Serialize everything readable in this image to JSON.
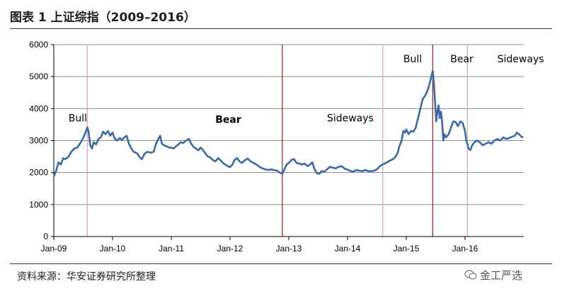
{
  "header": {
    "title": "图表 1  上证综指（2009–2016）"
  },
  "footer": {
    "source": "资料来源：华安证券研究所整理",
    "watermark": "金工严选"
  },
  "chart_data": {
    "type": "line",
    "title": "上证综指（2009–2016）",
    "xlabel": "",
    "ylabel": "",
    "ylim": [
      0,
      6000
    ],
    "yticks": [
      0,
      1000,
      2000,
      3000,
      4000,
      5000,
      6000
    ],
    "grid": true,
    "xlim": [
      2009.0,
      2017.0
    ],
    "xticks": [
      {
        "label": "Jan-09",
        "x": 2009.0
      },
      {
        "label": "Jan-10",
        "x": 2010.0
      },
      {
        "label": "Jan-11",
        "x": 2011.0
      },
      {
        "label": "Jan-12",
        "x": 2012.0
      },
      {
        "label": "Jan-13",
        "x": 2013.0
      },
      {
        "label": "Jan-14",
        "x": 2014.0
      },
      {
        "label": "Jan-15",
        "x": 2015.0
      },
      {
        "label": "Jan-16",
        "x": 2016.0
      }
    ],
    "series": [
      {
        "name": "上证综指",
        "color": "#3b6aa5",
        "points": [
          [
            2009.0,
            1880
          ],
          [
            2009.04,
            2050
          ],
          [
            2009.08,
            2320
          ],
          [
            2009.12,
            2250
          ],
          [
            2009.16,
            2450
          ],
          [
            2009.2,
            2420
          ],
          [
            2009.25,
            2500
          ],
          [
            2009.3,
            2650
          ],
          [
            2009.35,
            2750
          ],
          [
            2009.4,
            2780
          ],
          [
            2009.45,
            2920
          ],
          [
            2009.5,
            3080
          ],
          [
            2009.54,
            3250
          ],
          [
            2009.57,
            3410
          ],
          [
            2009.59,
            3300
          ],
          [
            2009.62,
            2850
          ],
          [
            2009.65,
            2750
          ],
          [
            2009.68,
            2950
          ],
          [
            2009.72,
            2880
          ],
          [
            2009.76,
            3050
          ],
          [
            2009.8,
            3100
          ],
          [
            2009.84,
            3280
          ],
          [
            2009.88,
            3200
          ],
          [
            2009.92,
            3300
          ],
          [
            2009.96,
            3150
          ],
          [
            2010.0,
            3250
          ],
          [
            2010.04,
            3050
          ],
          [
            2010.08,
            3000
          ],
          [
            2010.12,
            3080
          ],
          [
            2010.16,
            3020
          ],
          [
            2010.2,
            3100
          ],
          [
            2010.24,
            3150
          ],
          [
            2010.28,
            2900
          ],
          [
            2010.32,
            2750
          ],
          [
            2010.36,
            2650
          ],
          [
            2010.42,
            2600
          ],
          [
            2010.46,
            2480
          ],
          [
            2010.5,
            2420
          ],
          [
            2010.55,
            2600
          ],
          [
            2010.6,
            2650
          ],
          [
            2010.65,
            2620
          ],
          [
            2010.7,
            2650
          ],
          [
            2010.74,
            2900
          ],
          [
            2010.78,
            3050
          ],
          [
            2010.81,
            3150
          ],
          [
            2010.84,
            2900
          ],
          [
            2010.88,
            2850
          ],
          [
            2010.92,
            2820
          ],
          [
            2010.96,
            2780
          ],
          [
            2011.0,
            2780
          ],
          [
            2011.04,
            2750
          ],
          [
            2011.08,
            2820
          ],
          [
            2011.12,
            2880
          ],
          [
            2011.16,
            2950
          ],
          [
            2011.2,
            2920
          ],
          [
            2011.25,
            3000
          ],
          [
            2011.3,
            3050
          ],
          [
            2011.34,
            2900
          ],
          [
            2011.38,
            2800
          ],
          [
            2011.42,
            2750
          ],
          [
            2011.46,
            2700
          ],
          [
            2011.5,
            2780
          ],
          [
            2011.54,
            2700
          ],
          [
            2011.58,
            2600
          ],
          [
            2011.62,
            2500
          ],
          [
            2011.66,
            2480
          ],
          [
            2011.7,
            2400
          ],
          [
            2011.75,
            2350
          ],
          [
            2011.8,
            2450
          ],
          [
            2011.84,
            2380
          ],
          [
            2011.88,
            2300
          ],
          [
            2011.92,
            2250
          ],
          [
            2011.96,
            2200
          ],
          [
            2012.0,
            2170
          ],
          [
            2012.04,
            2250
          ],
          [
            2012.08,
            2400
          ],
          [
            2012.12,
            2450
          ],
          [
            2012.16,
            2350
          ],
          [
            2012.2,
            2300
          ],
          [
            2012.25,
            2380
          ],
          [
            2012.3,
            2440
          ],
          [
            2012.35,
            2350
          ],
          [
            2012.4,
            2300
          ],
          [
            2012.45,
            2250
          ],
          [
            2012.5,
            2180
          ],
          [
            2012.55,
            2130
          ],
          [
            2012.6,
            2100
          ],
          [
            2012.65,
            2080
          ],
          [
            2012.7,
            2100
          ],
          [
            2012.75,
            2080
          ],
          [
            2012.8,
            2060
          ],
          [
            2012.85,
            2000
          ],
          [
            2012.89,
            1960
          ],
          [
            2012.92,
            2080
          ],
          [
            2012.96,
            2250
          ],
          [
            2013.0,
            2300
          ],
          [
            2013.05,
            2400
          ],
          [
            2013.09,
            2420
          ],
          [
            2013.13,
            2300
          ],
          [
            2013.18,
            2280
          ],
          [
            2013.22,
            2250
          ],
          [
            2013.27,
            2280
          ],
          [
            2013.32,
            2200
          ],
          [
            2013.36,
            2250
          ],
          [
            2013.4,
            2320
          ],
          [
            2013.44,
            2100
          ],
          [
            2013.48,
            1980
          ],
          [
            2013.52,
            1960
          ],
          [
            2013.56,
            2050
          ],
          [
            2013.6,
            2020
          ],
          [
            2013.65,
            2100
          ],
          [
            2013.7,
            2180
          ],
          [
            2013.75,
            2150
          ],
          [
            2013.8,
            2130
          ],
          [
            2013.85,
            2180
          ],
          [
            2013.9,
            2200
          ],
          [
            2013.95,
            2120
          ],
          [
            2014.0,
            2090
          ],
          [
            2014.05,
            2050
          ],
          [
            2014.1,
            2030
          ],
          [
            2014.15,
            2080
          ],
          [
            2014.2,
            2060
          ],
          [
            2014.25,
            2040
          ],
          [
            2014.3,
            2080
          ],
          [
            2014.35,
            2050
          ],
          [
            2014.4,
            2040
          ],
          [
            2014.45,
            2060
          ],
          [
            2014.5,
            2100
          ],
          [
            2014.55,
            2200
          ],
          [
            2014.6,
            2250
          ],
          [
            2014.65,
            2300
          ],
          [
            2014.7,
            2350
          ],
          [
            2014.75,
            2400
          ],
          [
            2014.8,
            2450
          ],
          [
            2014.85,
            2600
          ],
          [
            2014.88,
            2800
          ],
          [
            2014.92,
            3000
          ],
          [
            2014.95,
            3300
          ],
          [
            2014.98,
            3250
          ],
          [
            2015.0,
            3350
          ],
          [
            2015.04,
            3200
          ],
          [
            2015.08,
            3300
          ],
          [
            2015.12,
            3280
          ],
          [
            2015.16,
            3400
          ],
          [
            2015.2,
            3700
          ],
          [
            2015.24,
            4000
          ],
          [
            2015.28,
            4300
          ],
          [
            2015.32,
            4400
          ],
          [
            2015.36,
            4550
          ],
          [
            2015.4,
            4800
          ],
          [
            2015.44,
            5100
          ],
          [
            2015.45,
            5180
          ],
          [
            2015.47,
            4800
          ],
          [
            2015.49,
            4200
          ],
          [
            2015.51,
            3600
          ],
          [
            2015.53,
            3900
          ],
          [
            2015.55,
            4100
          ],
          [
            2015.57,
            3700
          ],
          [
            2015.59,
            3900
          ],
          [
            2015.61,
            3600
          ],
          [
            2015.63,
            3000
          ],
          [
            2015.65,
            3200
          ],
          [
            2015.68,
            3100
          ],
          [
            2015.72,
            3200
          ],
          [
            2015.76,
            3400
          ],
          [
            2015.8,
            3600
          ],
          [
            2015.84,
            3580
          ],
          [
            2015.88,
            3450
          ],
          [
            2015.92,
            3600
          ],
          [
            2015.96,
            3550
          ],
          [
            2016.0,
            3300
          ],
          [
            2016.02,
            3000
          ],
          [
            2016.04,
            2900
          ],
          [
            2016.06,
            2750
          ],
          [
            2016.09,
            2700
          ],
          [
            2016.12,
            2850
          ],
          [
            2016.16,
            2950
          ],
          [
            2016.2,
            3000
          ],
          [
            2016.25,
            2950
          ],
          [
            2016.3,
            2850
          ],
          [
            2016.35,
            2900
          ],
          [
            2016.4,
            2950
          ],
          [
            2016.45,
            2900
          ],
          [
            2016.5,
            3000
          ],
          [
            2016.55,
            3050
          ],
          [
            2016.6,
            3000
          ],
          [
            2016.65,
            3100
          ],
          [
            2016.7,
            3050
          ],
          [
            2016.75,
            3080
          ],
          [
            2016.8,
            3120
          ],
          [
            2016.85,
            3150
          ],
          [
            2016.88,
            3250
          ],
          [
            2016.92,
            3200
          ],
          [
            2016.96,
            3120
          ],
          [
            2016.99,
            3100
          ]
        ]
      }
    ],
    "phase_lines": [
      {
        "x": 2009.57,
        "color": "#e6a0a0"
      },
      {
        "x": 2012.89,
        "color": "#9b1c1c"
      },
      {
        "x": 2014.6,
        "color": "#e6a0a0"
      },
      {
        "x": 2015.45,
        "color": "#9b1c1c"
      },
      {
        "x": 2016.04,
        "color": "#e6a0a0"
      }
    ],
    "annotations": [
      {
        "text": "Bull",
        "x": 2009.25,
        "y": 3600,
        "weight": "normal"
      },
      {
        "text": "Bear",
        "x": 2011.75,
        "y": 3550,
        "weight": "bold"
      },
      {
        "text": "Sideways",
        "x": 2013.65,
        "y": 3600,
        "weight": "normal"
      },
      {
        "text": "Bull",
        "x": 2014.95,
        "y": 5450,
        "weight": "normal"
      },
      {
        "text": "Bear",
        "x": 2015.75,
        "y": 5450,
        "weight": "normal"
      },
      {
        "text": "Sideways",
        "x": 2016.55,
        "y": 5450,
        "weight": "normal"
      }
    ]
  }
}
